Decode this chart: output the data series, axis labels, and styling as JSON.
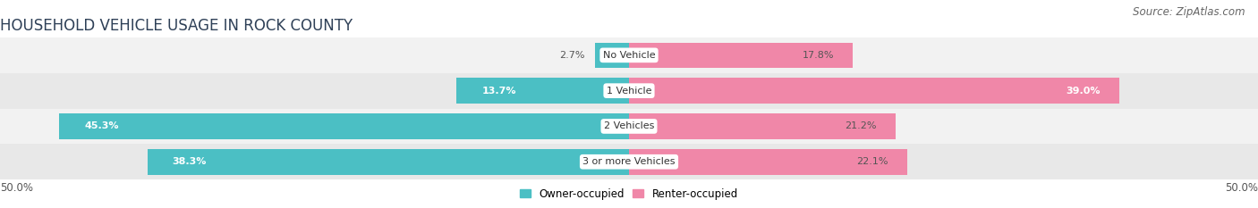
{
  "title": "HOUSEHOLD VEHICLE USAGE IN ROCK COUNTY",
  "source": "Source: ZipAtlas.com",
  "categories": [
    "No Vehicle",
    "1 Vehicle",
    "2 Vehicles",
    "3 or more Vehicles"
  ],
  "owner_values": [
    2.7,
    13.7,
    45.3,
    38.3
  ],
  "renter_values": [
    17.8,
    39.0,
    21.2,
    22.1
  ],
  "owner_color": "#4BBFC4",
  "renter_color": "#F087A8",
  "bar_height": 0.72,
  "xlim": [
    -50,
    50
  ],
  "xticklabels_left": "50.0%",
  "xticklabels_right": "50.0%",
  "legend_labels": [
    "Owner-occupied",
    "Renter-occupied"
  ],
  "title_fontsize": 12,
  "source_fontsize": 8.5,
  "label_fontsize": 8,
  "cat_fontsize": 8,
  "tick_fontsize": 8.5,
  "background_color": "#FFFFFF",
  "row_bg_colors": [
    "#F2F2F2",
    "#E8E8E8",
    "#F2F2F2",
    "#E8E8E8"
  ]
}
